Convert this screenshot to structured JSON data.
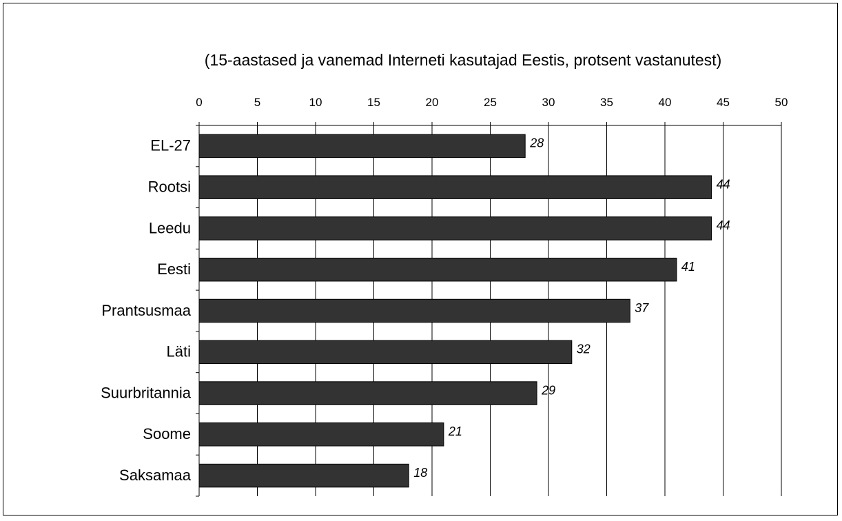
{
  "chart_data": {
    "type": "bar",
    "orientation": "horizontal",
    "title": "(15-aastased ja vanemad Interneti kasutajad Eestis, protsent vastanutest)",
    "categories": [
      "EL-27",
      "Rootsi",
      "Leedu",
      "Eesti",
      "Prantsusmaa",
      "Läti",
      "Suurbritannia",
      "Soome",
      "Saksamaa"
    ],
    "values": [
      28,
      44,
      44,
      41,
      37,
      32,
      29,
      21,
      18
    ],
    "xlabel": "",
    "ylabel": "",
    "xlim": [
      0,
      50
    ],
    "xticks": [
      0,
      5,
      10,
      15,
      20,
      25,
      30,
      35,
      40,
      45,
      50
    ],
    "x_axis_position": "top",
    "grid": true,
    "legend": "none",
    "data_labels": true,
    "bar_color": "#333333",
    "grid_color": "#000000"
  }
}
